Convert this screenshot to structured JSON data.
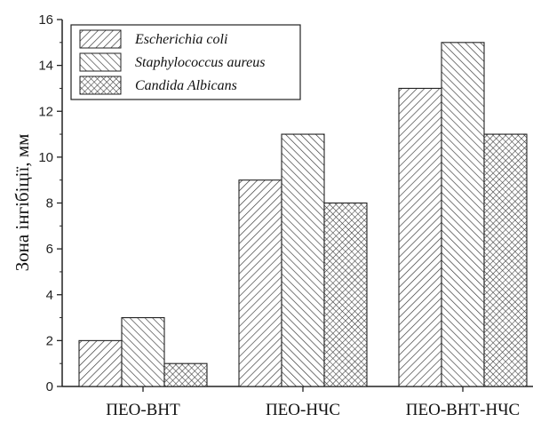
{
  "chart_data": {
    "type": "bar",
    "categories": [
      "ПЕО-ВНТ",
      "ПЕО-НЧС",
      "ПЕО-ВНТ-НЧС"
    ],
    "series": [
      {
        "name": "Escherichia coli",
        "values": [
          2,
          9,
          13
        ],
        "pattern": "hatch-ne"
      },
      {
        "name": "Staphylococcus aureus",
        "values": [
          3,
          11,
          15
        ],
        "pattern": "hatch-nw"
      },
      {
        "name": "Candida Albicans",
        "values": [
          1,
          8,
          11
        ],
        "pattern": "crosshatch"
      }
    ],
    "xlabel": "",
    "ylabel": "Зона інгібіції, мм",
    "ylim": [
      0,
      16
    ],
    "yticks": [
      0,
      2,
      4,
      6,
      8,
      10,
      12,
      14,
      16
    ],
    "grid": false,
    "legend_position": "top-left",
    "colors": {
      "fill": "#ffffff",
      "stroke": "#222222",
      "hatch": "#333333"
    }
  }
}
